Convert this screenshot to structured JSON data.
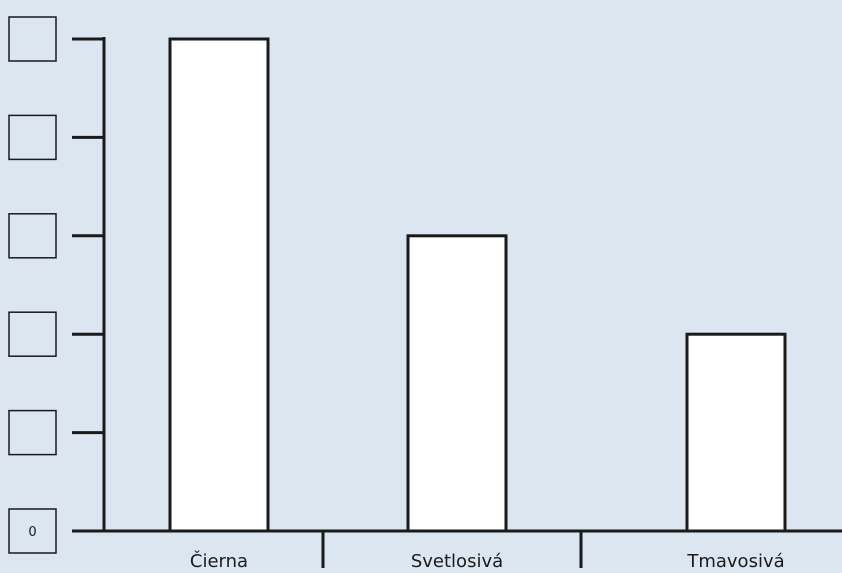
{
  "chart_data": {
    "type": "bar",
    "categories": [
      "Čierna",
      "Svetlosivá",
      "Tmavosivá"
    ],
    "values": [
      5,
      3,
      2
    ],
    "y_tick_labels": [
      "0",
      "",
      "",
      "",
      "",
      ""
    ],
    "ylim": [
      0,
      5
    ],
    "grid": false,
    "colors": {
      "background": "#dce6f1",
      "bar_fill": "#ffffff",
      "stroke": "#1a1a1a"
    }
  }
}
